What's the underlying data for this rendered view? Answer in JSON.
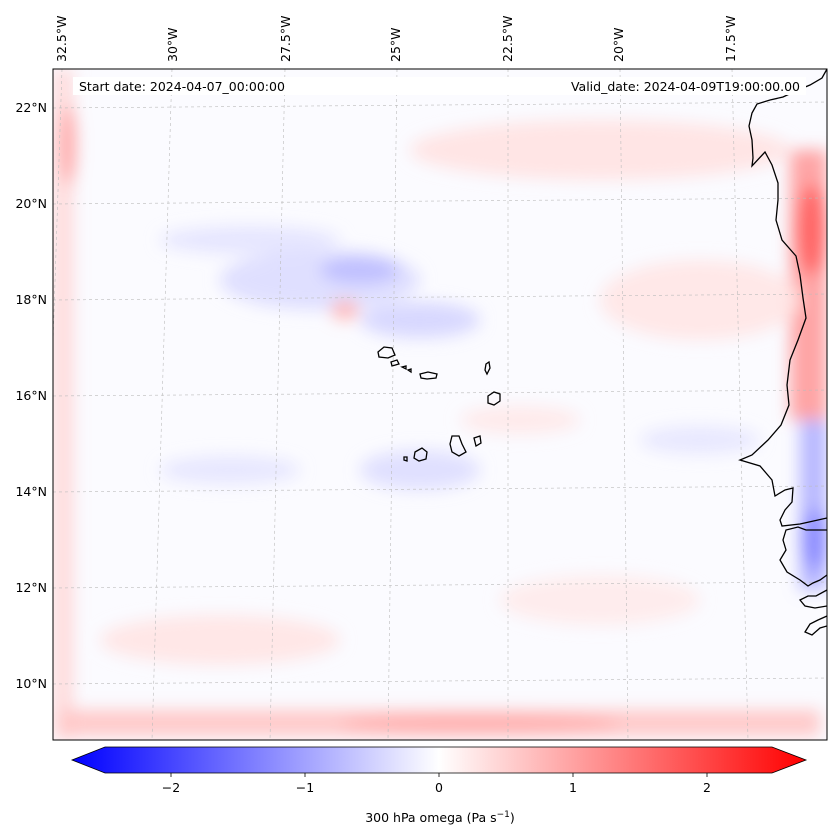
{
  "header": {
    "start_date": "Start date: 2024-04-07_00:00:00",
    "valid_date": "Valid_date: 2024-04-09T19:00:00.00"
  },
  "lon_labels": [
    "32.5°W",
    "30°W",
    "27.5°W",
    "25°W",
    "22.5°W",
    "20°W",
    "17.5°W"
  ],
  "lat_labels": [
    "22°N",
    "20°N",
    "18°N",
    "16°N",
    "14°N",
    "12°N",
    "10°N"
  ],
  "colorbar": {
    "label_main": "300 hPa omega (Pa s",
    "label_exp": "−1",
    "label_close": ")",
    "ticks": [
      "−2",
      "−1",
      "0",
      "1",
      "2"
    ],
    "min": -2.75,
    "max": 2.75,
    "colors": {
      "negative": "#0000ff",
      "zero": "#ffffff",
      "positive": "#ff0000"
    }
  },
  "field": {
    "variable": "omega",
    "level": "300 hPa",
    "coastline_color": "#000000",
    "gridline_color": "#bbbbbb"
  }
}
